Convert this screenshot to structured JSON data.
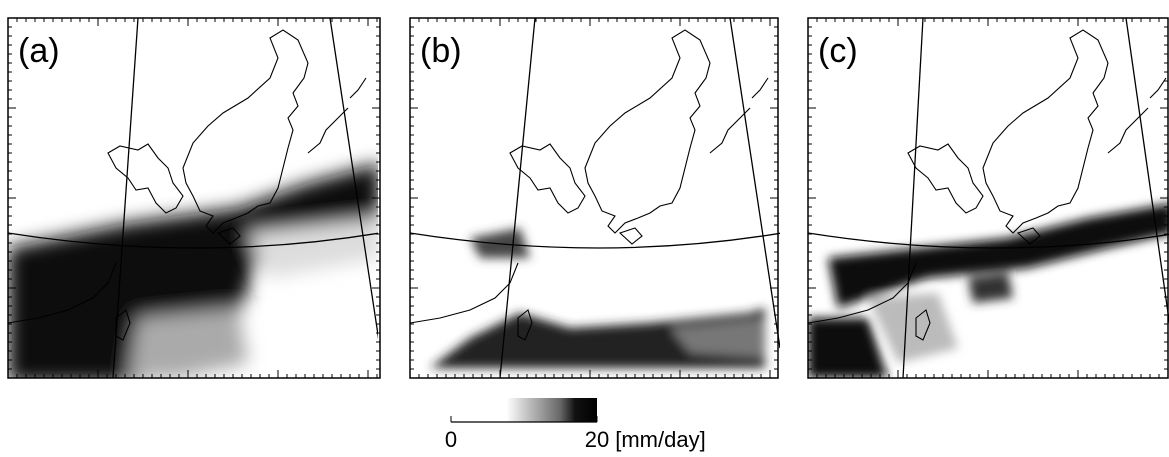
{
  "panels": [
    {
      "label": "(a)"
    },
    {
      "label": "(b)"
    },
    {
      "label": "(c)"
    }
  ],
  "colorbar": {
    "range": [
      0,
      20
    ],
    "ticks": [
      0,
      20
    ],
    "unit": "[mm/day]"
  }
}
